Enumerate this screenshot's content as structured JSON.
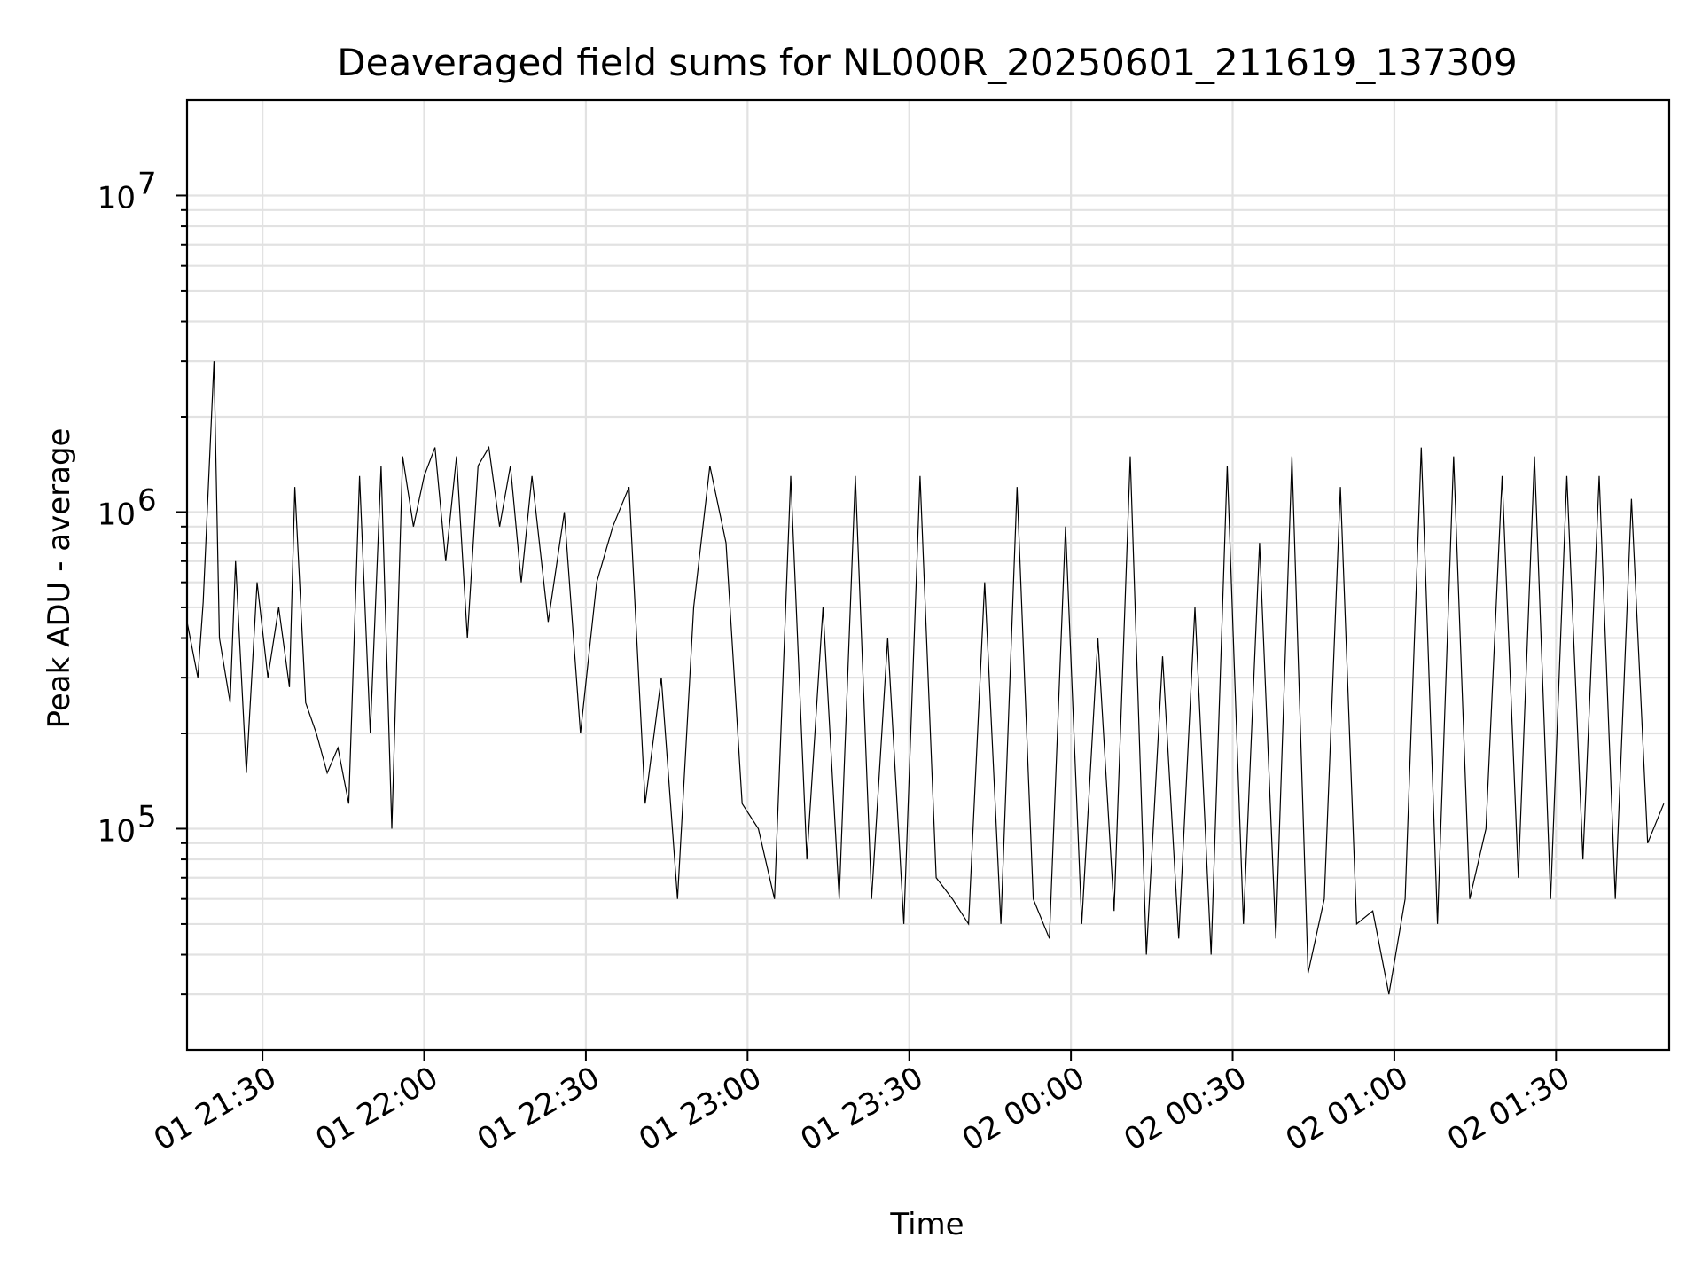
{
  "chart_data": {
    "type": "line",
    "title": "Deaveraged field sums for NL000R_20250601_211619_137309",
    "xlabel": "Time",
    "ylabel": "Peak ADU - average",
    "yscale": "log",
    "ylim": [
      20000,
      20000000
    ],
    "xlim": [
      "2025-06-01 21:16",
      "2025-06-02 01:51"
    ],
    "grid": true,
    "line_color": "#000000",
    "x_ticks": [
      {
        "value": "2025-06-01 21:30",
        "label": "01 21:30"
      },
      {
        "value": "2025-06-01 22:00",
        "label": "01 22:00"
      },
      {
        "value": "2025-06-01 22:30",
        "label": "01 22:30"
      },
      {
        "value": "2025-06-01 23:00",
        "label": "01 23:00"
      },
      {
        "value": "2025-06-01 23:30",
        "label": "01 23:30"
      },
      {
        "value": "2025-06-02 00:00",
        "label": "02 00:00"
      },
      {
        "value": "2025-06-02 00:30",
        "label": "02 00:30"
      },
      {
        "value": "2025-06-02 01:00",
        "label": "02 01:00"
      },
      {
        "value": "2025-06-02 01:30",
        "label": "02 01:30"
      }
    ],
    "y_ticks": [
      {
        "value": 100000,
        "base": "10",
        "exp": "5"
      },
      {
        "value": 1000000,
        "base": "10",
        "exp": "6"
      },
      {
        "value": 10000000,
        "base": "10",
        "exp": "7"
      }
    ],
    "series": [
      {
        "x": [
          "2025-06-01 21:16",
          "2025-06-01 21:18",
          "2025-06-01 21:19",
          "2025-06-01 21:21",
          "2025-06-01 21:22",
          "2025-06-01 21:24",
          "2025-06-01 21:25",
          "2025-06-01 21:27",
          "2025-06-01 21:29",
          "2025-06-01 21:31",
          "2025-06-01 21:33",
          "2025-06-01 21:35",
          "2025-06-01 21:36",
          "2025-06-01 21:38",
          "2025-06-01 21:40",
          "2025-06-01 21:42",
          "2025-06-01 21:44",
          "2025-06-01 21:46",
          "2025-06-01 21:48",
          "2025-06-01 21:50",
          "2025-06-01 21:52",
          "2025-06-01 21:54",
          "2025-06-01 21:56",
          "2025-06-01 21:58",
          "2025-06-01 22:00",
          "2025-06-01 22:02",
          "2025-06-01 22:04",
          "2025-06-01 22:06",
          "2025-06-01 22:08",
          "2025-06-01 22:10",
          "2025-06-01 22:12",
          "2025-06-01 22:14",
          "2025-06-01 22:16",
          "2025-06-01 22:18",
          "2025-06-01 22:20",
          "2025-06-01 22:23",
          "2025-06-01 22:26",
          "2025-06-01 22:29",
          "2025-06-01 22:32",
          "2025-06-01 22:35",
          "2025-06-01 22:38",
          "2025-06-01 22:41",
          "2025-06-01 22:44",
          "2025-06-01 22:47",
          "2025-06-01 22:50",
          "2025-06-01 22:53",
          "2025-06-01 22:56",
          "2025-06-01 22:59",
          "2025-06-01 23:02",
          "2025-06-01 23:05",
          "2025-06-01 23:08",
          "2025-06-01 23:11",
          "2025-06-01 23:14",
          "2025-06-01 23:17",
          "2025-06-01 23:20",
          "2025-06-01 23:23",
          "2025-06-01 23:26",
          "2025-06-01 23:29",
          "2025-06-01 23:32",
          "2025-06-01 23:35",
          "2025-06-01 23:38",
          "2025-06-01 23:41",
          "2025-06-01 23:44",
          "2025-06-01 23:47",
          "2025-06-01 23:50",
          "2025-06-01 23:53",
          "2025-06-01 23:56",
          "2025-06-01 23:59",
          "2025-06-02 00:02",
          "2025-06-02 00:05",
          "2025-06-02 00:08",
          "2025-06-02 00:11",
          "2025-06-02 00:14",
          "2025-06-02 00:17",
          "2025-06-02 00:20",
          "2025-06-02 00:23",
          "2025-06-02 00:26",
          "2025-06-02 00:29",
          "2025-06-02 00:32",
          "2025-06-02 00:35",
          "2025-06-02 00:38",
          "2025-06-02 00:41",
          "2025-06-02 00:44",
          "2025-06-02 00:47",
          "2025-06-02 00:50",
          "2025-06-02 00:53",
          "2025-06-02 00:56",
          "2025-06-02 00:59",
          "2025-06-02 01:02",
          "2025-06-02 01:05",
          "2025-06-02 01:08",
          "2025-06-02 01:11",
          "2025-06-02 01:14",
          "2025-06-02 01:17",
          "2025-06-02 01:20",
          "2025-06-02 01:23",
          "2025-06-02 01:26",
          "2025-06-02 01:29",
          "2025-06-02 01:32",
          "2025-06-02 01:35",
          "2025-06-02 01:38",
          "2025-06-02 01:41",
          "2025-06-02 01:44",
          "2025-06-02 01:47",
          "2025-06-02 01:50"
        ],
        "y": [
          450000,
          300000,
          520000,
          3000000,
          400000,
          250000,
          700000,
          150000,
          600000,
          300000,
          500000,
          280000,
          1200000,
          250000,
          200000,
          150000,
          180000,
          120000,
          1300000,
          200000,
          1400000,
          100000,
          1500000,
          900000,
          1300000,
          1600000,
          700000,
          1500000,
          400000,
          1400000,
          1600000,
          900000,
          1400000,
          600000,
          1300000,
          450000,
          1000000,
          200000,
          600000,
          900000,
          1200000,
          120000,
          300000,
          60000,
          500000,
          1400000,
          800000,
          120000,
          100000,
          60000,
          1300000,
          80000,
          500000,
          60000,
          1300000,
          60000,
          400000,
          50000,
          1300000,
          70000,
          60000,
          50000,
          600000,
          50000,
          1200000,
          60000,
          45000,
          900000,
          50000,
          400000,
          55000,
          1500000,
          40000,
          350000,
          45000,
          500000,
          40000,
          1400000,
          50000,
          800000,
          45000,
          1500000,
          35000,
          60000,
          1200000,
          50000,
          55000,
          30000,
          60000,
          1600000,
          50000,
          1500000,
          60000,
          100000,
          1300000,
          70000,
          1500000,
          60000,
          1300000,
          80000,
          1300000,
          60000,
          1100000,
          90000,
          120000
        ]
      }
    ]
  }
}
